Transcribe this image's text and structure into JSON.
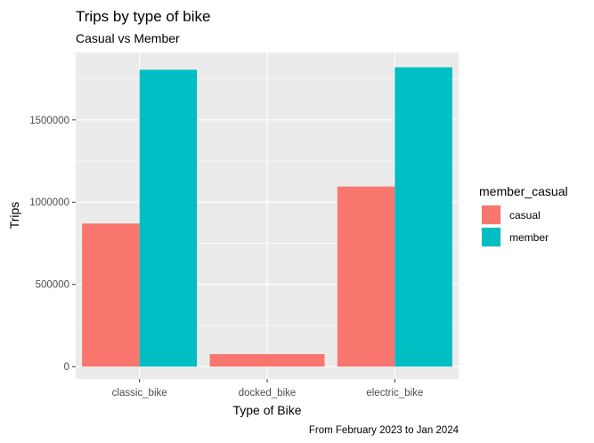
{
  "chart_data": {
    "type": "bar",
    "title": "Trips by type of bike",
    "subtitle": "Casual vs Member",
    "xlabel": "Type of Bike",
    "ylabel": "Trips",
    "caption": "From February 2023 to Jan 2024",
    "categories": [
      "classic_bike",
      "docked_bike",
      "electric_bike"
    ],
    "series": [
      {
        "name": "casual",
        "color": "#F8766D",
        "values": [
          870000,
          76000,
          1095000
        ]
      },
      {
        "name": "member",
        "color": "#00BFC4",
        "values": [
          1805000,
          null,
          1820000
        ]
      }
    ],
    "ylim": [
      -75000,
      1910000
    ],
    "yticks": [
      0,
      500000,
      1000000,
      1500000
    ],
    "ytick_labels": [
      "0",
      "500000",
      "1000000",
      "1500000"
    ],
    "grid": true,
    "legend": {
      "title": "member_casual",
      "position": "right"
    },
    "panel_background": "#EBEBEB",
    "grid_color": "#FFFFFF"
  }
}
